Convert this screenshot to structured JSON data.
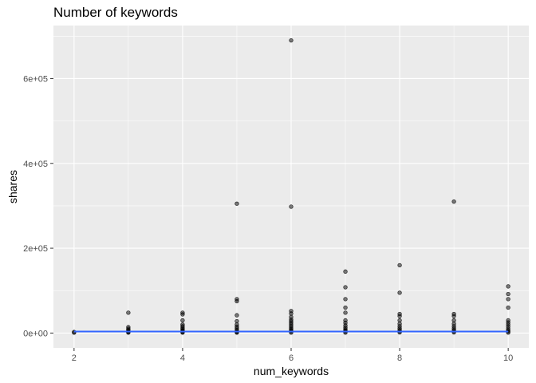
{
  "chart_data": {
    "type": "scatter",
    "title": "Number of keywords",
    "xlabel": "num_keywords",
    "ylabel": "shares",
    "xlim": [
      1.62,
      10.38
    ],
    "ylim": [
      -35000,
      725000
    ],
    "x_ticks": [
      2,
      4,
      6,
      8,
      10
    ],
    "x_tick_labels": [
      "2",
      "4",
      "6",
      "8",
      "10"
    ],
    "x_minor_ticks": [
      3,
      5,
      7,
      9
    ],
    "y_ticks": [
      0,
      200000,
      400000,
      600000
    ],
    "y_tick_labels": [
      "0e+00",
      "2e+05",
      "4e+05",
      "6e+05"
    ],
    "y_minor_ticks": [
      100000,
      300000,
      500000,
      700000
    ],
    "grid": true,
    "legend": "none",
    "colors": {
      "panel_bg": "#ebebeb",
      "grid": "#ffffff",
      "points": "#000000",
      "trend_line": "#3366ff"
    },
    "series": [
      {
        "type": "points",
        "x": [
          2,
          2,
          3,
          3,
          3,
          3,
          3,
          3,
          3,
          4,
          4,
          4,
          4,
          4,
          4,
          4,
          4,
          4,
          4,
          4,
          5,
          5,
          5,
          5,
          5,
          5,
          5,
          5,
          5,
          5,
          5,
          5,
          6,
          6,
          6,
          6,
          6,
          6,
          6,
          6,
          6,
          6,
          6,
          6,
          6,
          6,
          6,
          7,
          7,
          7,
          7,
          7,
          7,
          7,
          7,
          7,
          7,
          7,
          7,
          7,
          8,
          8,
          8,
          8,
          8,
          8,
          8,
          8,
          8,
          8,
          8,
          9,
          9,
          9,
          9,
          9,
          9,
          9,
          9,
          9,
          9,
          10,
          10,
          10,
          10,
          10,
          10,
          10,
          10,
          10,
          10,
          10,
          10
        ],
        "y": [
          1000,
          2500,
          48000,
          14000,
          10000,
          7000,
          4000,
          2500,
          1000,
          48000,
          44000,
          30000,
          20000,
          16000,
          12000,
          9000,
          6000,
          4000,
          2500,
          1000,
          305000,
          80000,
          75000,
          42000,
          28000,
          20000,
          15000,
          11000,
          7000,
          4000,
          2500,
          1000,
          690000,
          298000,
          52000,
          46000,
          38000,
          32000,
          28000,
          24000,
          20000,
          16000,
          12000,
          9000,
          6000,
          3500,
          1000,
          145000,
          108000,
          80000,
          60000,
          48000,
          30000,
          24000,
          18000,
          13000,
          9000,
          6000,
          3500,
          1000,
          160000,
          95000,
          45000,
          40000,
          30000,
          22000,
          16000,
          11000,
          7000,
          4000,
          1500,
          310000,
          45000,
          40000,
          30000,
          22000,
          16000,
          11000,
          7000,
          4000,
          1500,
          110000,
          92000,
          80000,
          60000,
          30000,
          25000,
          20000,
          15000,
          10000,
          6000,
          3500,
          1000
        ]
      },
      {
        "type": "line",
        "name": "",
        "x": [
          2,
          10
        ],
        "y": [
          3500,
          3500
        ]
      }
    ]
  }
}
